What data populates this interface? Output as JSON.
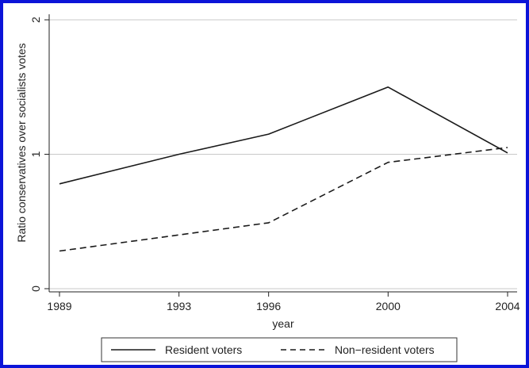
{
  "colors": {
    "frame_border": "#0b14d8",
    "grid": "#c8c8c8",
    "line": "#1a1a1a"
  },
  "chart_data": {
    "type": "line",
    "title": "",
    "xlabel": "year",
    "ylabel": "Ratio conservatives over socialists votes",
    "x": [
      1989,
      1993,
      1996,
      2000,
      2004
    ],
    "xticks": [
      "1989",
      "1993",
      "1996",
      "2000",
      "2004"
    ],
    "yticks": [
      "0",
      "1",
      "2"
    ],
    "xlim": [
      1989,
      2004
    ],
    "ylim": [
      0,
      2
    ],
    "grid": true,
    "legend_position": "bottom",
    "series": [
      {
        "name": "Resident voters",
        "style": "solid",
        "values": [
          0.78,
          1.0,
          1.15,
          1.5,
          1.01
        ]
      },
      {
        "name": "Non−resident voters",
        "style": "dashed",
        "values": [
          0.28,
          0.4,
          0.49,
          0.94,
          1.05
        ]
      }
    ]
  }
}
